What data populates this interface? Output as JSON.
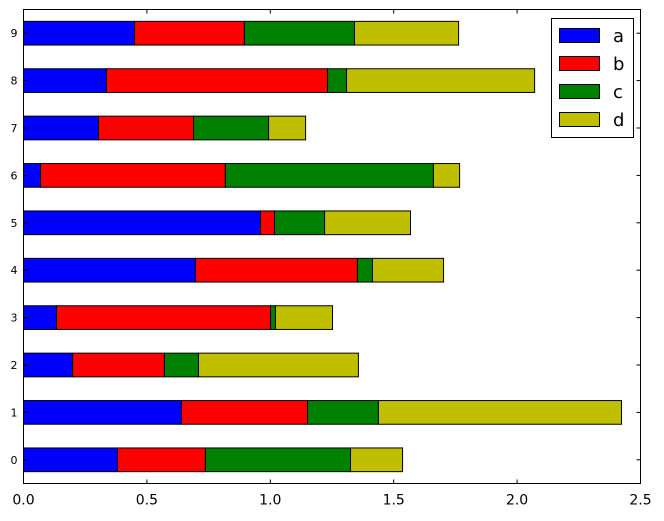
{
  "chart_data": {
    "type": "bar",
    "orientation": "horizontal",
    "stacked": true,
    "title": "",
    "xlabel": "",
    "ylabel": "",
    "categories": [
      "0",
      "1",
      "2",
      "3",
      "4",
      "5",
      "6",
      "7",
      "8",
      "9"
    ],
    "xlim": [
      0,
      2.5
    ],
    "xticks": [
      "0.0",
      "0.5",
      "1.0",
      "1.5",
      "2.0",
      "2.5"
    ],
    "legend_position": "top-right",
    "series": [
      {
        "name": "a",
        "color": "#0000ff",
        "values": [
          0.381,
          0.64,
          0.199,
          0.134,
          0.697,
          0.96,
          0.069,
          0.304,
          0.336,
          0.45
        ]
      },
      {
        "name": "b",
        "color": "#ff0000",
        "values": [
          0.356,
          0.511,
          0.372,
          0.867,
          0.656,
          0.057,
          0.749,
          0.385,
          0.896,
          0.445
        ]
      },
      {
        "name": "c",
        "color": "#008000",
        "values": [
          0.588,
          0.287,
          0.138,
          0.02,
          0.061,
          0.203,
          0.843,
          0.304,
          0.077,
          0.446
        ]
      },
      {
        "name": "d",
        "color": "#bfbf00",
        "values": [
          0.211,
          0.985,
          0.648,
          0.231,
          0.288,
          0.348,
          0.106,
          0.15,
          0.762,
          0.422
        ]
      }
    ]
  }
}
